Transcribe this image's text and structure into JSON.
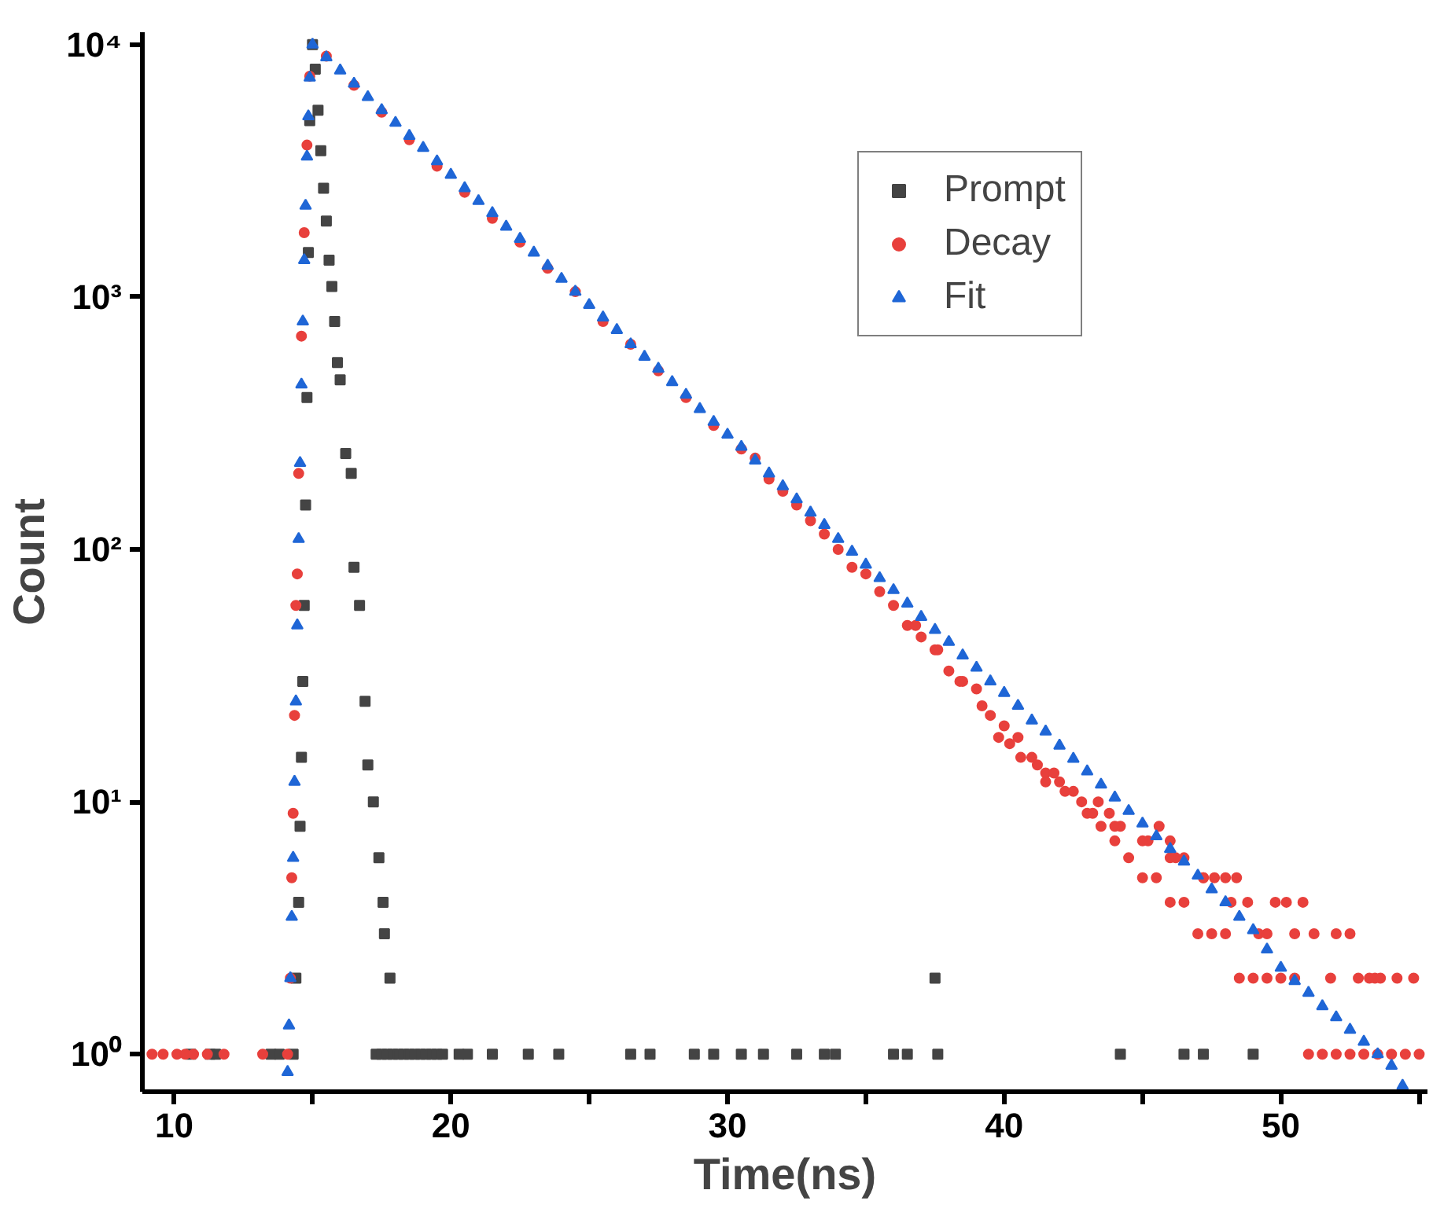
{
  "chart_data": {
    "type": "scatter",
    "xlabel": "Time(ns)",
    "ylabel": "Count",
    "log": "y",
    "grid": false,
    "legend": "top right",
    "xlim": [
      8.85,
      55.3
    ],
    "ylim": [
      0.71,
      11200
    ],
    "xticks": [
      10,
      {
        "value": 15,
        "label": null
      },
      20,
      {
        "value": 25,
        "label": null
      },
      30,
      {
        "value": 35,
        "label": null
      },
      40,
      {
        "value": 45,
        "label": null
      },
      50,
      {
        "value": 55,
        "label": null
      }
    ],
    "yticks": [
      {
        "value": 1,
        "label": "10⁰"
      },
      {
        "value": 10,
        "label": "10¹"
      },
      {
        "value": 100,
        "label": "10²"
      },
      {
        "value": 1000,
        "label": "10³"
      },
      {
        "value": 10000,
        "label": "10⁴"
      }
    ],
    "series": [
      {
        "name": "Prompt",
        "color": "#444444",
        "marker": "square",
        "x": [
          10.6,
          11.3,
          11.5,
          13.5,
          13.8,
          14.3,
          14.4,
          14.5,
          14.55,
          14.6,
          14.65,
          14.7,
          14.75,
          14.8,
          14.85,
          14.9,
          15.0,
          15.1,
          15.2,
          15.3,
          15.4,
          15.5,
          15.6,
          15.7,
          15.8,
          15.9,
          16.0,
          16.2,
          16.4,
          16.5,
          16.7,
          16.9,
          17.0,
          17.2,
          17.4,
          17.55,
          17.6,
          17.8,
          17.3,
          17.5,
          17.7,
          17.9,
          18.1,
          18.3,
          18.5,
          18.7,
          18.9,
          19.1,
          19.3,
          19.5,
          19.7,
          20.3,
          20.6,
          21.5,
          22.8,
          23.9,
          26.5,
          27.2,
          28.8,
          29.5,
          30.5,
          31.3,
          32.5,
          33.5,
          33.9,
          36.0,
          36.5,
          37.5,
          37.6,
          44.2,
          46.5,
          47.2,
          49.0
        ],
        "values": [
          1,
          1,
          1,
          1,
          1,
          1,
          2,
          4,
          8,
          15,
          30,
          60,
          150,
          400,
          1500,
          5000,
          10000,
          8000,
          5500,
          3800,
          2700,
          2000,
          1400,
          1100,
          800,
          550,
          470,
          240,
          200,
          85,
          60,
          25,
          14,
          10,
          6,
          4,
          3,
          2,
          1,
          1,
          1,
          1,
          1,
          1,
          1,
          1,
          1,
          1,
          1,
          1,
          1,
          1,
          1,
          1,
          1,
          1,
          1,
          1,
          1,
          1,
          1,
          1,
          1,
          1,
          1,
          1,
          1,
          2,
          1,
          1,
          1,
          1,
          1
        ]
      },
      {
        "name": "Decay",
        "color": "#e8403c",
        "marker": "circle",
        "x": [
          9.2,
          9.6,
          10.1,
          10.4,
          10.7,
          11.2,
          11.8,
          13.2,
          14.1,
          14.2,
          14.25,
          14.3,
          14.35,
          14.4,
          14.45,
          14.5,
          14.6,
          14.7,
          14.8,
          14.9,
          15.5,
          16.5,
          17.5,
          18.5,
          19.5,
          20.5,
          21.5,
          22.5,
          23.5,
          24.5,
          25.5,
          26.5,
          27.5,
          28.5,
          29.5,
          30.5,
          31.0,
          31.5,
          32.0,
          32.5,
          33.0,
          33.5,
          34.0,
          34.5,
          35.0,
          35.5,
          36.0,
          36.5,
          37.0,
          37.5,
          38.0,
          38.5,
          39.0,
          39.5,
          40.0,
          40.5,
          41.0,
          41.5,
          42.0,
          42.5,
          43.0,
          43.5,
          44.0,
          44.5,
          45.0,
          45.5,
          46.0,
          46.5,
          47.0,
          47.5,
          48.0,
          48.5,
          49.0,
          49.5,
          50.0,
          50.5,
          51.0,
          51.5,
          52.0,
          52.5,
          53.0,
          53.5,
          54.0,
          54.5,
          55.0,
          36.8,
          37.6,
          38.4,
          39.2,
          40.2,
          41.2,
          42.2,
          43.2,
          44.2,
          45.2,
          46.2,
          47.2,
          48.2,
          49.2,
          50.5,
          51.8,
          53.4,
          39.8,
          41.5,
          43.4,
          45.6,
          47.6,
          49.8,
          52.0,
          54.2,
          41.8,
          43.8,
          46.0,
          48.4,
          50.8,
          53.2,
          40.6,
          42.8,
          45.0,
          47.2,
          49.5,
          52.5,
          54.8,
          44.0,
          46.5,
          48.8,
          51.2,
          53.6,
          46.0,
          48.0,
          50.2,
          52.8
        ],
        "values": [
          1,
          1,
          1,
          1,
          1,
          1,
          1,
          1,
          1,
          2,
          5,
          9,
          22,
          60,
          80,
          200,
          700,
          1800,
          4000,
          7500,
          9000,
          6900,
          5400,
          4200,
          3300,
          2600,
          2050,
          1650,
          1300,
          1050,
          800,
          650,
          510,
          400,
          310,
          250,
          230,
          190,
          170,
          150,
          130,
          115,
          100,
          85,
          80,
          68,
          60,
          50,
          45,
          40,
          33,
          30,
          28,
          22,
          20,
          18,
          15,
          13,
          12,
          11,
          9,
          8,
          7,
          6,
          5,
          5,
          4,
          4,
          3,
          3,
          3,
          2,
          2,
          2,
          2,
          2,
          1,
          1,
          1,
          1,
          1,
          1,
          1,
          1,
          1,
          50,
          40,
          30,
          24,
          17,
          14,
          11,
          9,
          8,
          7,
          6,
          5,
          4,
          3,
          3,
          2,
          2,
          18,
          12,
          10,
          8,
          5,
          4,
          3,
          2,
          13,
          9,
          6,
          5,
          4,
          2,
          15,
          10,
          7,
          5,
          3,
          3,
          2,
          8,
          6,
          4,
          3,
          2,
          7,
          5,
          4,
          2
        ]
      },
      {
        "name": "Fit",
        "color": "#1f66d6",
        "marker": "triangle",
        "x": [
          14.1,
          14.15,
          14.2,
          14.25,
          14.3,
          14.35,
          14.4,
          14.45,
          14.5,
          14.55,
          14.6,
          14.65,
          14.7,
          14.75,
          14.8,
          14.85,
          14.9,
          15.0,
          15.5,
          16,
          16.5,
          17,
          17.5,
          18,
          18.5,
          19,
          19.5,
          20,
          20.5,
          21,
          21.5,
          22,
          22.5,
          23,
          23.5,
          24,
          24.5,
          25,
          25.5,
          26,
          26.5,
          27,
          27.5,
          28,
          28.5,
          29,
          29.5,
          30,
          30.5,
          31,
          31.5,
          32,
          32.5,
          33,
          33.5,
          34,
          34.5,
          35,
          35.5,
          36,
          36.5,
          37,
          37.5,
          38,
          38.5,
          39,
          39.5,
          40,
          40.5,
          41,
          41.5,
          42,
          42.5,
          43,
          43.5,
          44,
          44.5,
          45,
          45.5,
          46,
          46.5,
          47,
          47.5,
          48,
          48.5,
          49,
          49.5,
          50,
          50.5,
          51,
          51.5,
          52,
          52.5,
          53,
          53.5,
          54,
          54.4
        ],
        "values": [
          0.85,
          1.3,
          2,
          3.5,
          6,
          12,
          25,
          50,
          110,
          220,
          450,
          800,
          1400,
          2300,
          3600,
          5200,
          7400,
          10000,
          8900,
          7900,
          7000,
          6200,
          5500,
          4900,
          4350,
          3900,
          3450,
          3050,
          2700,
          2400,
          2150,
          1900,
          1700,
          1500,
          1330,
          1180,
          1050,
          930,
          830,
          740,
          650,
          580,
          520,
          460,
          410,
          360,
          320,
          285,
          255,
          225,
          200,
          178,
          158,
          140,
          125,
          110,
          98,
          87,
          77,
          69,
          61,
          54,
          48,
          43,
          38,
          34,
          30,
          27,
          24,
          21,
          19,
          16.7,
          14.8,
          13.2,
          11.7,
          10.4,
          9.2,
          8.2,
          7.3,
          6.5,
          5.8,
          5.1,
          4.5,
          4.0,
          3.5,
          3.1,
          2.6,
          2.2,
          1.95,
          1.75,
          1.55,
          1.4,
          1.25,
          1.12,
          1.0,
          0.9,
          0.75
        ]
      }
    ]
  }
}
